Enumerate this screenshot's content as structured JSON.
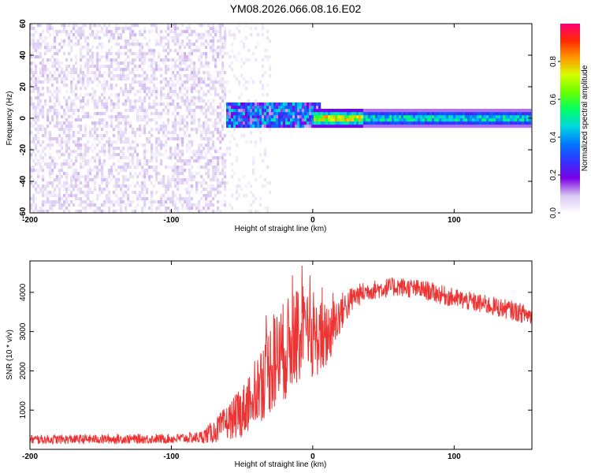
{
  "title": "YM08.2026.066.08.16.E02",
  "colors": {
    "snr_line": "#ee3333",
    "background": "#ffffff",
    "axis": "#000000"
  },
  "chart_data": [
    {
      "type": "heatmap",
      "id": "spectrogram",
      "xlabel": "Height of straight line (km)",
      "ylabel": "Frequency (Hz)",
      "xlim": [
        -200,
        155
      ],
      "ylim": [
        -60,
        60
      ],
      "xticks": [
        -200,
        -100,
        0,
        100
      ],
      "yticks": [
        -60,
        -40,
        -20,
        0,
        20,
        40,
        60
      ],
      "colorbar": {
        "label": "Normalized spectral amplitude",
        "range": [
          0.0,
          1.0
        ],
        "ticks": [
          0.0,
          0.2,
          0.4,
          0.6,
          0.8
        ],
        "colormap": [
          "#ffffff",
          "#d9c8f2",
          "#7a00e6",
          "#3333ff",
          "#0077ff",
          "#00d5e0",
          "#00ff66",
          "#66ff00",
          "#d4ff00",
          "#ff9900",
          "#ff2a00",
          "#ff0077"
        ]
      },
      "regions": [
        {
          "x_range": [
            -200,
            -62
          ],
          "freq_range": [
            -60,
            60
          ],
          "amplitude_range": [
            0.0,
            0.1
          ],
          "description_level": "noise"
        },
        {
          "x_range": [
            -62,
            -30
          ],
          "freq_range": [
            -60,
            60
          ],
          "amplitude_range": [
            0.0,
            0.05
          ],
          "description_level": "sparse noise"
        },
        {
          "x_range": [
            -62,
            5
          ],
          "freq_range": [
            -6,
            9
          ],
          "amplitude_range": [
            0.1,
            0.5
          ],
          "description_level": "signal band"
        },
        {
          "x_range": [
            0,
            155
          ],
          "freq_range": [
            -5,
            5
          ],
          "amplitude_range": [
            0.2,
            1.0
          ],
          "description_level": "strong band"
        }
      ]
    },
    {
      "type": "line",
      "id": "snr",
      "xlabel": "Height of straight line (km)",
      "ylabel": "SNR (10 * v/v)",
      "xlim": [
        -200,
        155
      ],
      "ylim": [
        0,
        4800
      ],
      "xticks": [
        -200,
        -100,
        0,
        100
      ],
      "yticks": [
        1000,
        2000,
        3000,
        4000
      ],
      "x": [
        -200,
        -150,
        -100,
        -80,
        -70,
        -60,
        -50,
        -40,
        -30,
        -20,
        -10,
        0,
        10,
        20,
        30,
        40,
        60,
        80,
        100,
        120,
        140,
        155
      ],
      "y": [
        250,
        260,
        270,
        300,
        450,
        700,
        950,
        1500,
        2100,
        2500,
        2900,
        2800,
        2900,
        3500,
        3900,
        4050,
        4150,
        4050,
        3850,
        3700,
        3550,
        3400
      ],
      "noise_amplitude": [
        120,
        120,
        120,
        150,
        300,
        450,
        650,
        900,
        1200,
        1300,
        1200,
        1000,
        900,
        500,
        300,
        250,
        250,
        250,
        250,
        250,
        250,
        250
      ]
    }
  ]
}
